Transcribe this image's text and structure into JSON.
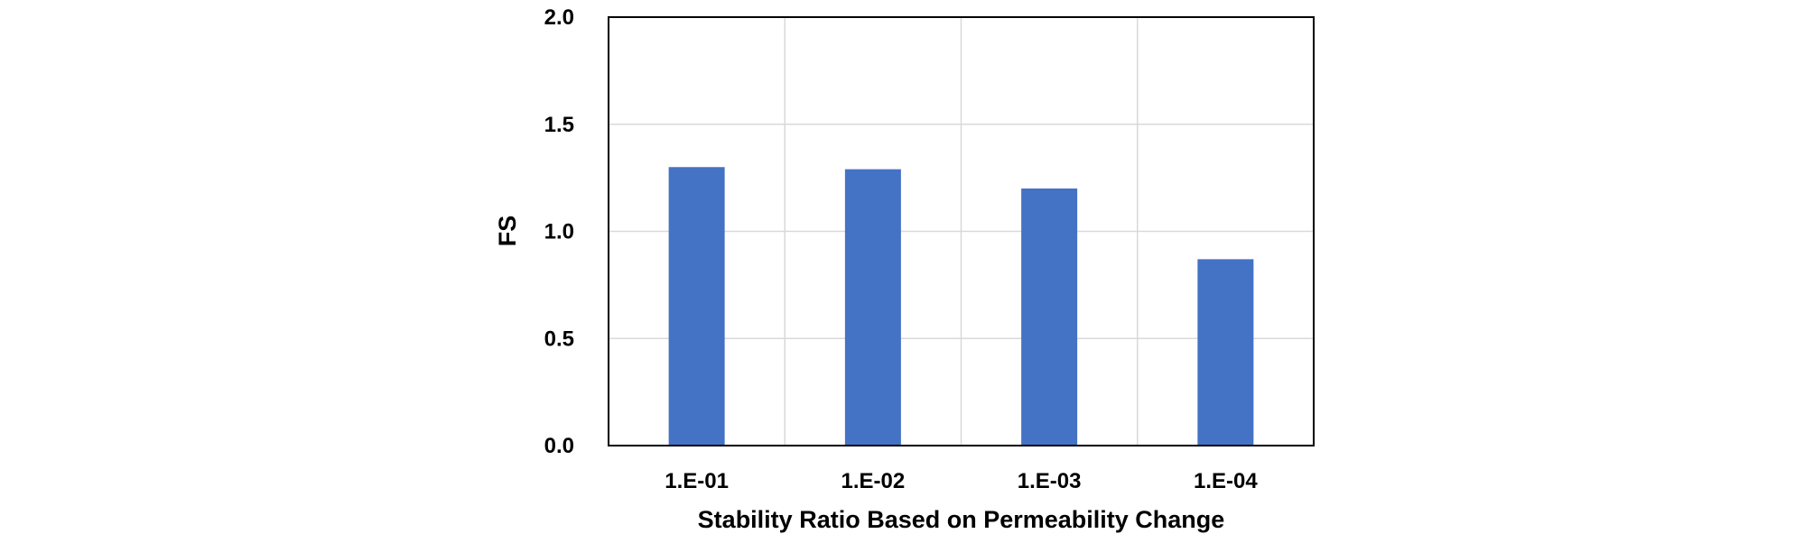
{
  "chart_data": {
    "type": "bar",
    "title": "",
    "xlabel": "Stability Ratio Based on Permeability Change",
    "ylabel": "FS",
    "categories": [
      "1.E-01",
      "1.E-02",
      "1.E-03",
      "1.E-04"
    ],
    "series": [
      {
        "values": [
          1.3,
          1.29,
          1.2,
          0.87
        ]
      }
    ],
    "ylim": [
      0,
      2.0
    ],
    "yticks": [
      "0.0",
      "0.5",
      "1.0",
      "1.5",
      "2.0"
    ],
    "ytick_values": [
      0,
      0.5,
      1.0,
      1.5,
      2.0
    ],
    "grid": true,
    "bar_color": "#4472C4",
    "grid_color": "#D9D9D9",
    "axis_color": "#000000"
  }
}
